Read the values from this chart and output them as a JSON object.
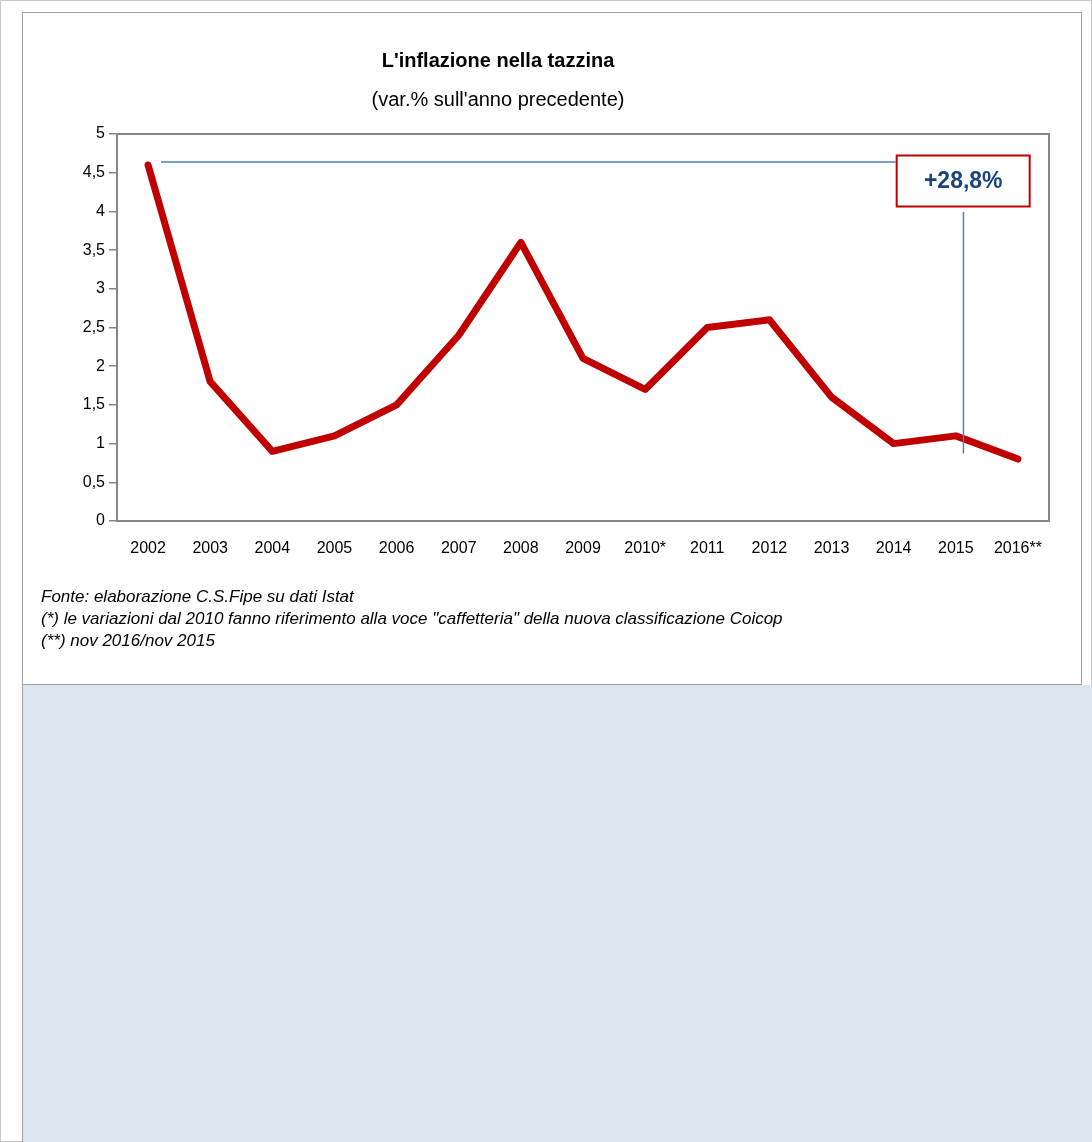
{
  "chart_data": {
    "type": "line",
    "title": "L'inflazione nella tazzina",
    "subtitle": "(var.% sull'anno precedente)",
    "categories": [
      "2002",
      "2003",
      "2004",
      "2005",
      "2006",
      "2007",
      "2008",
      "2009",
      "2010*",
      "2011",
      "2012",
      "2013",
      "2014",
      "2015",
      "2016**"
    ],
    "values": [
      4.6,
      1.8,
      0.9,
      1.1,
      1.5,
      2.4,
      3.6,
      2.1,
      1.7,
      2.5,
      2.6,
      1.6,
      1.0,
      1.1,
      0.8
    ],
    "color": "#c00000",
    "ylim": [
      0,
      5
    ],
    "yticks": [
      0,
      {
        "value": 0.5,
        "label": "0,5"
      },
      1,
      {
        "value": 1.5,
        "label": "1,5"
      },
      2,
      {
        "value": 2.5,
        "label": "2,5"
      },
      3,
      {
        "value": 3.5,
        "label": "3,5"
      },
      4,
      {
        "value": 4.5,
        "label": "4,5"
      },
      5
    ],
    "annotations": [
      "+28,8%",
      "Fonte: elaborazione C.S.Fipe su dati Istat",
      "(*) le variazioni dal 2010 fanno riferimento alla voce \"caffetteria\" della nuova classificazione Coicop",
      "(**) nov 2016/nov 2015"
    ]
  }
}
